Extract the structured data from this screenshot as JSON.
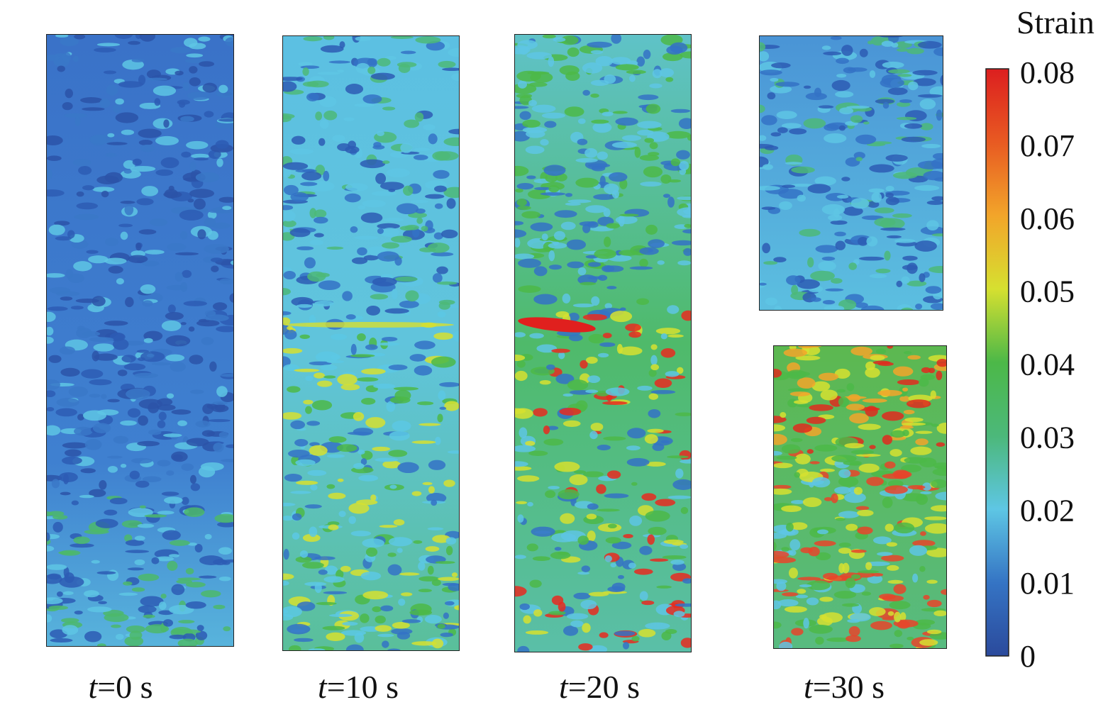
{
  "colorbar": {
    "title": "Strain",
    "ticks": [
      "0.08",
      "0.07",
      "0.06",
      "0.05",
      "0.04",
      "0.03",
      "0.02",
      "0.01",
      "0"
    ]
  },
  "panels": [
    {
      "variable": "t",
      "rest": "=0 s"
    },
    {
      "variable": "t",
      "rest": "=10 s"
    },
    {
      "variable": "t",
      "rest": "=20 s"
    },
    {
      "variable": "t",
      "rest": "=30 s"
    }
  ]
}
